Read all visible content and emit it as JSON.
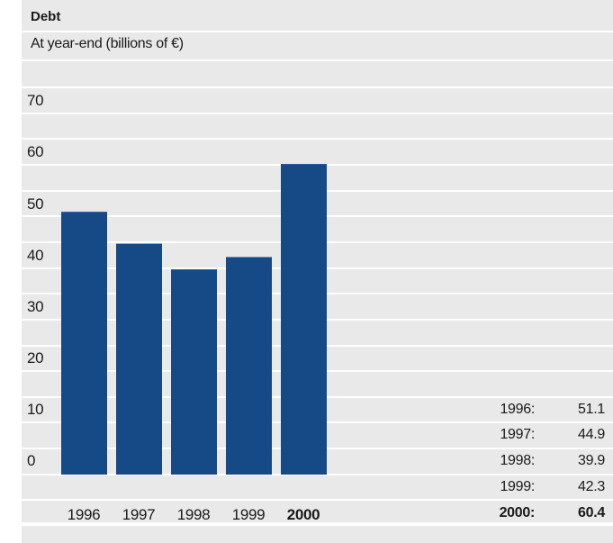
{
  "chart_data": {
    "type": "bar",
    "title": "Debt",
    "subtitle": "At year-end (billions of €)",
    "categories": [
      "1996",
      "1997",
      "1998",
      "1999",
      "2000"
    ],
    "values": [
      51.1,
      44.9,
      39.9,
      42.3,
      60.4
    ],
    "highlight_category": "2000",
    "ylim": [
      0,
      70
    ],
    "yticks": [
      "70",
      "60",
      "50",
      "40",
      "30",
      "20",
      "10",
      "0"
    ],
    "bar_color": "#154a87",
    "grid": true,
    "legend_table": [
      {
        "year": "1996:",
        "value": "51.1"
      },
      {
        "year": "1997:",
        "value": "44.9"
      },
      {
        "year": "1998:",
        "value": "39.9"
      },
      {
        "year": "1999:",
        "value": "42.3"
      },
      {
        "year": "2000:",
        "value": "60.4"
      }
    ]
  },
  "colors": {
    "band": "#e9e9e9",
    "bar": "#154a87"
  }
}
